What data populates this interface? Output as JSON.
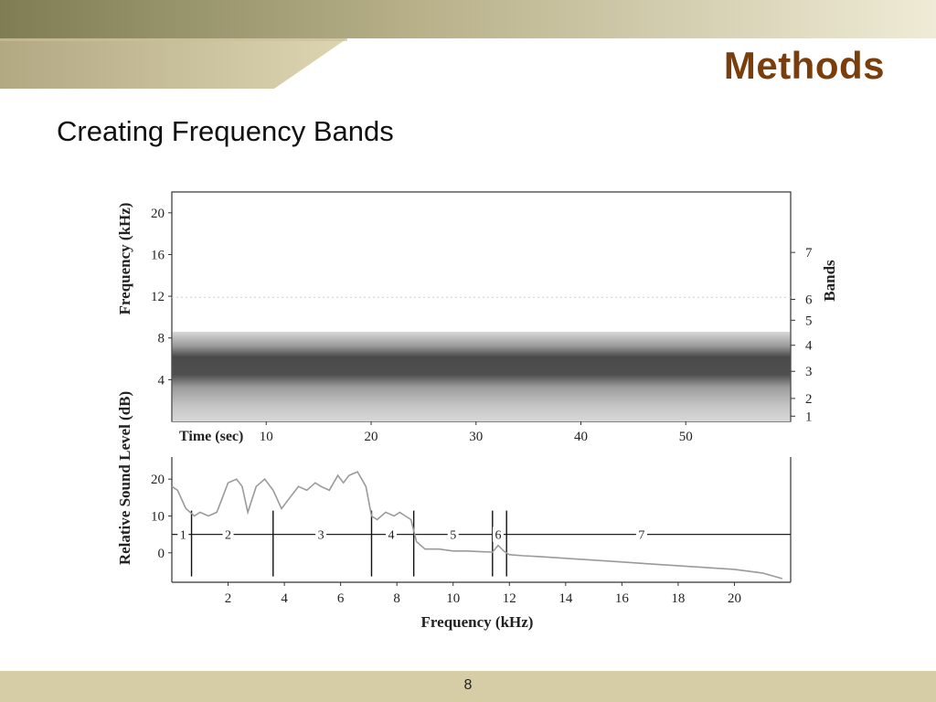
{
  "slide": {
    "title": "Methods",
    "subtitle": "Creating Frequency Bands",
    "page_number": "8"
  },
  "colors": {
    "title": "#7a3d0c",
    "header_gradient_start": "#8c8a62",
    "header_gradient_end": "#e8e2c6",
    "footer": "#d6cca6"
  },
  "chart_data": [
    {
      "type": "heatmap",
      "title": "",
      "xlabel": "Time (sec)",
      "ylabel": "Frequency (kHz)",
      "x_ticks": [
        "10",
        "20",
        "30",
        "40",
        "50"
      ],
      "y_ticks": [
        "4",
        "8",
        "12",
        "16",
        "20"
      ],
      "xlim": [
        1,
        60
      ],
      "ylim": [
        0,
        22
      ],
      "secondary_axis_label": "Bands",
      "band_labels": [
        "1",
        "2",
        "3",
        "4",
        "5",
        "6",
        "7"
      ],
      "band_label_freqs": [
        0.5,
        2.2,
        4.8,
        7.3,
        9.7,
        11.7,
        16.2
      ]
    },
    {
      "type": "line",
      "title": "",
      "xlabel": "Frequency (kHz)",
      "ylabel": "Relative Sound Level (dB)",
      "x_ticks": [
        "2",
        "4",
        "6",
        "8",
        "10",
        "12",
        "14",
        "16",
        "18",
        "20"
      ],
      "y_ticks": [
        "0",
        "10",
        "20"
      ],
      "xlim": [
        0,
        22
      ],
      "ylim": [
        -8,
        26
      ],
      "series": [
        {
          "x": [
            0,
            0.2,
            0.5,
            0.8,
            1.0,
            1.3,
            1.6,
            1.8,
            2.0,
            2.3,
            2.5,
            2.7,
            3.0,
            3.3,
            3.6,
            3.9,
            4.2,
            4.5,
            4.8,
            5.1,
            5.3,
            5.6,
            5.9,
            6.1,
            6.3,
            6.6,
            6.9,
            7.1,
            7.3,
            7.6,
            7.9,
            8.1,
            8.3,
            8.5,
            8.7,
            9.0,
            9.5,
            10.0,
            10.5,
            11.0,
            11.4,
            11.6,
            11.8,
            12.0,
            12.5,
            13.0,
            14.0,
            15.0,
            16.0,
            17.0,
            18.0,
            19.0,
            20.0,
            21.0,
            21.7
          ],
          "y": [
            18,
            17,
            12,
            10,
            11,
            10,
            11,
            15,
            19,
            20,
            18,
            11,
            18,
            20,
            17,
            12,
            15,
            18,
            17,
            19,
            18,
            17,
            21,
            19,
            21,
            22,
            18,
            10,
            9,
            11,
            10,
            11,
            10,
            9,
            3,
            1,
            1,
            0.5,
            0.5,
            0.3,
            0.2,
            2,
            0.5,
            -0.5,
            -0.8,
            -1,
            -1.5,
            -2,
            -2.5,
            -3,
            -3.5,
            -4,
            -4.5,
            -5.5,
            -7
          ]
        }
      ],
      "band_boundaries": [
        0.7,
        3.6,
        7.1,
        8.6,
        11.4,
        11.9
      ],
      "band_labels": [
        "1",
        "2",
        "3",
        "4",
        "5",
        "6",
        "7"
      ],
      "band_label_x": [
        0.4,
        2.0,
        5.3,
        7.8,
        10.0,
        11.6,
        16.7
      ],
      "band_line_db": 5
    }
  ]
}
